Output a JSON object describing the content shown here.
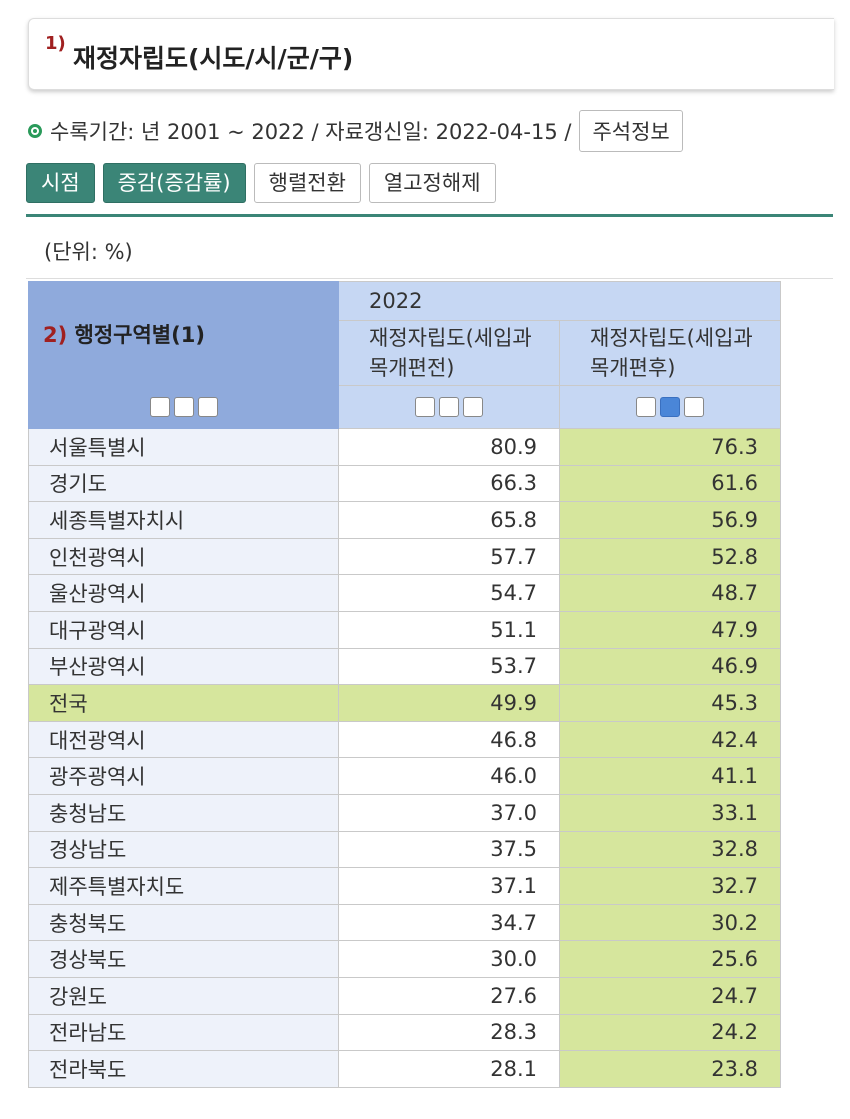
{
  "header": {
    "number": "1)",
    "title": "재정자립도(시도/시/군/구)"
  },
  "info": {
    "text": "수록기간: 년 2001 ~ 2022 / 자료갱신일: 2022-04-15 /",
    "button": "주석정보"
  },
  "toolbar": [
    "시점",
    "증감(증감률)",
    "행렬전환",
    "열고정해제"
  ],
  "unit": "(단위: %)",
  "table": {
    "row_header_number": "2)",
    "row_header": "행정구역별(1)",
    "year": "2022",
    "columns": [
      "재정자립도(세입과목개편전)",
      "재정자립도(세입과목개편후)"
    ],
    "rows": [
      {
        "name": "서울특별시",
        "values": [
          "80.9",
          "76.3"
        ]
      },
      {
        "name": "경기도",
        "values": [
          "66.3",
          "61.6"
        ]
      },
      {
        "name": "세종특별자치시",
        "values": [
          "65.8",
          "56.9"
        ]
      },
      {
        "name": "인천광역시",
        "values": [
          "57.7",
          "52.8"
        ]
      },
      {
        "name": "울산광역시",
        "values": [
          "54.7",
          "48.7"
        ]
      },
      {
        "name": "대구광역시",
        "values": [
          "51.1",
          "47.9"
        ]
      },
      {
        "name": "부산광역시",
        "values": [
          "53.7",
          "46.9"
        ]
      },
      {
        "name": "전국",
        "values": [
          "49.9",
          "45.3"
        ]
      },
      {
        "name": "대전광역시",
        "values": [
          "46.8",
          "42.4"
        ]
      },
      {
        "name": "광주광역시",
        "values": [
          "46.0",
          "41.1"
        ]
      },
      {
        "name": "충청남도",
        "values": [
          "37.0",
          "33.1"
        ]
      },
      {
        "name": "경상남도",
        "values": [
          "37.5",
          "32.8"
        ]
      },
      {
        "name": "제주특별자치도",
        "values": [
          "37.1",
          "32.7"
        ]
      },
      {
        "name": "충청북도",
        "values": [
          "34.7",
          "30.2"
        ]
      },
      {
        "name": "경상북도",
        "values": [
          "30.0",
          "25.6"
        ]
      },
      {
        "name": "강원도",
        "values": [
          "27.6",
          "24.7"
        ]
      },
      {
        "name": "전라남도",
        "values": [
          "28.3",
          "24.2"
        ]
      },
      {
        "name": "전라북도",
        "values": [
          "28.1",
          "23.8"
        ]
      }
    ]
  }
}
